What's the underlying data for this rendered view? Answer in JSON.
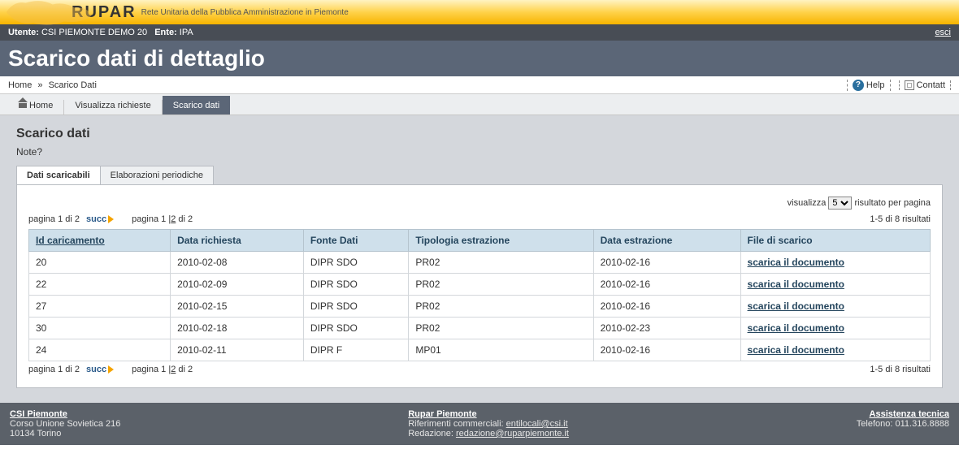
{
  "brand": {
    "title": "RUPAR",
    "subtitle": "Rete Unitaria della Pubblica Amministrazione in Piemonte"
  },
  "userbar": {
    "user_label": "Utente:",
    "user_value": "CSI PIEMONTE DEMO 20",
    "ente_label": "Ente:",
    "ente_value": "IPA",
    "logout": "esci"
  },
  "page_title": "Scarico dati di dettaglio",
  "breadcrumb": {
    "home": "Home",
    "sep": "»",
    "current": "Scarico Dati"
  },
  "help": {
    "help_label": "Help",
    "contact_label": "Contatt"
  },
  "tabs": {
    "home": "Home",
    "visualizza": "Visualizza richieste",
    "scarico": "Scarico dati"
  },
  "content": {
    "heading": "Scarico dati",
    "note": "Note?"
  },
  "inner_tabs": {
    "scaricabili": "Dati scaricabili",
    "periodiche": "Elaborazioni periodiche"
  },
  "perpage": {
    "label_pre": "visualizza",
    "value": "5",
    "label_post": "risultato per pagina"
  },
  "pager": {
    "page_of": "pagina 1 di 2",
    "succ": "succ",
    "pages_label": "pagina 1 |",
    "page2": "2",
    "pages_suffix": " di 2",
    "result_span": "1-5 di 8 risultati"
  },
  "table": {
    "headers": {
      "id": "Id caricamento",
      "data_richiesta": "Data richiesta",
      "fonte": "Fonte Dati",
      "tipologia": "Tipologia estrazione",
      "data_estrazione": "Data estrazione",
      "file": "File di scarico"
    },
    "download_label": "scarica il documento",
    "rows": [
      {
        "id": "20",
        "data_richiesta": "2010-02-08",
        "fonte": "DIPR SDO",
        "tipologia": "PR02",
        "data_estrazione": "2010-02-16"
      },
      {
        "id": "22",
        "data_richiesta": "2010-02-09",
        "fonte": "DIPR SDO",
        "tipologia": "PR02",
        "data_estrazione": "2010-02-16"
      },
      {
        "id": "27",
        "data_richiesta": "2010-02-15",
        "fonte": "DIPR SDO",
        "tipologia": "PR02",
        "data_estrazione": "2010-02-16"
      },
      {
        "id": "30",
        "data_richiesta": "2010-02-18",
        "fonte": "DIPR SDO",
        "tipologia": "PR02",
        "data_estrazione": "2010-02-23"
      },
      {
        "id": "24",
        "data_richiesta": "2010-02-11",
        "fonte": "DIPR F",
        "tipologia": "MP01",
        "data_estrazione": "2010-02-16"
      }
    ]
  },
  "footer": {
    "csi_title": "CSI Piemonte",
    "csi_addr1": "Corso Unione Sovietica 216",
    "csi_addr2": "10134 Torino",
    "rupar_title": "Rupar Piemonte",
    "rif_label": "Riferimenti commerciali: ",
    "rif_link": "entilocali@csi.it",
    "red_label": "Redazione: ",
    "red_link": "redazione@ruparpiemonte.it",
    "assist_title": "Assistenza tecnica",
    "assist_phone": "Telefono: 011.316.8888"
  }
}
